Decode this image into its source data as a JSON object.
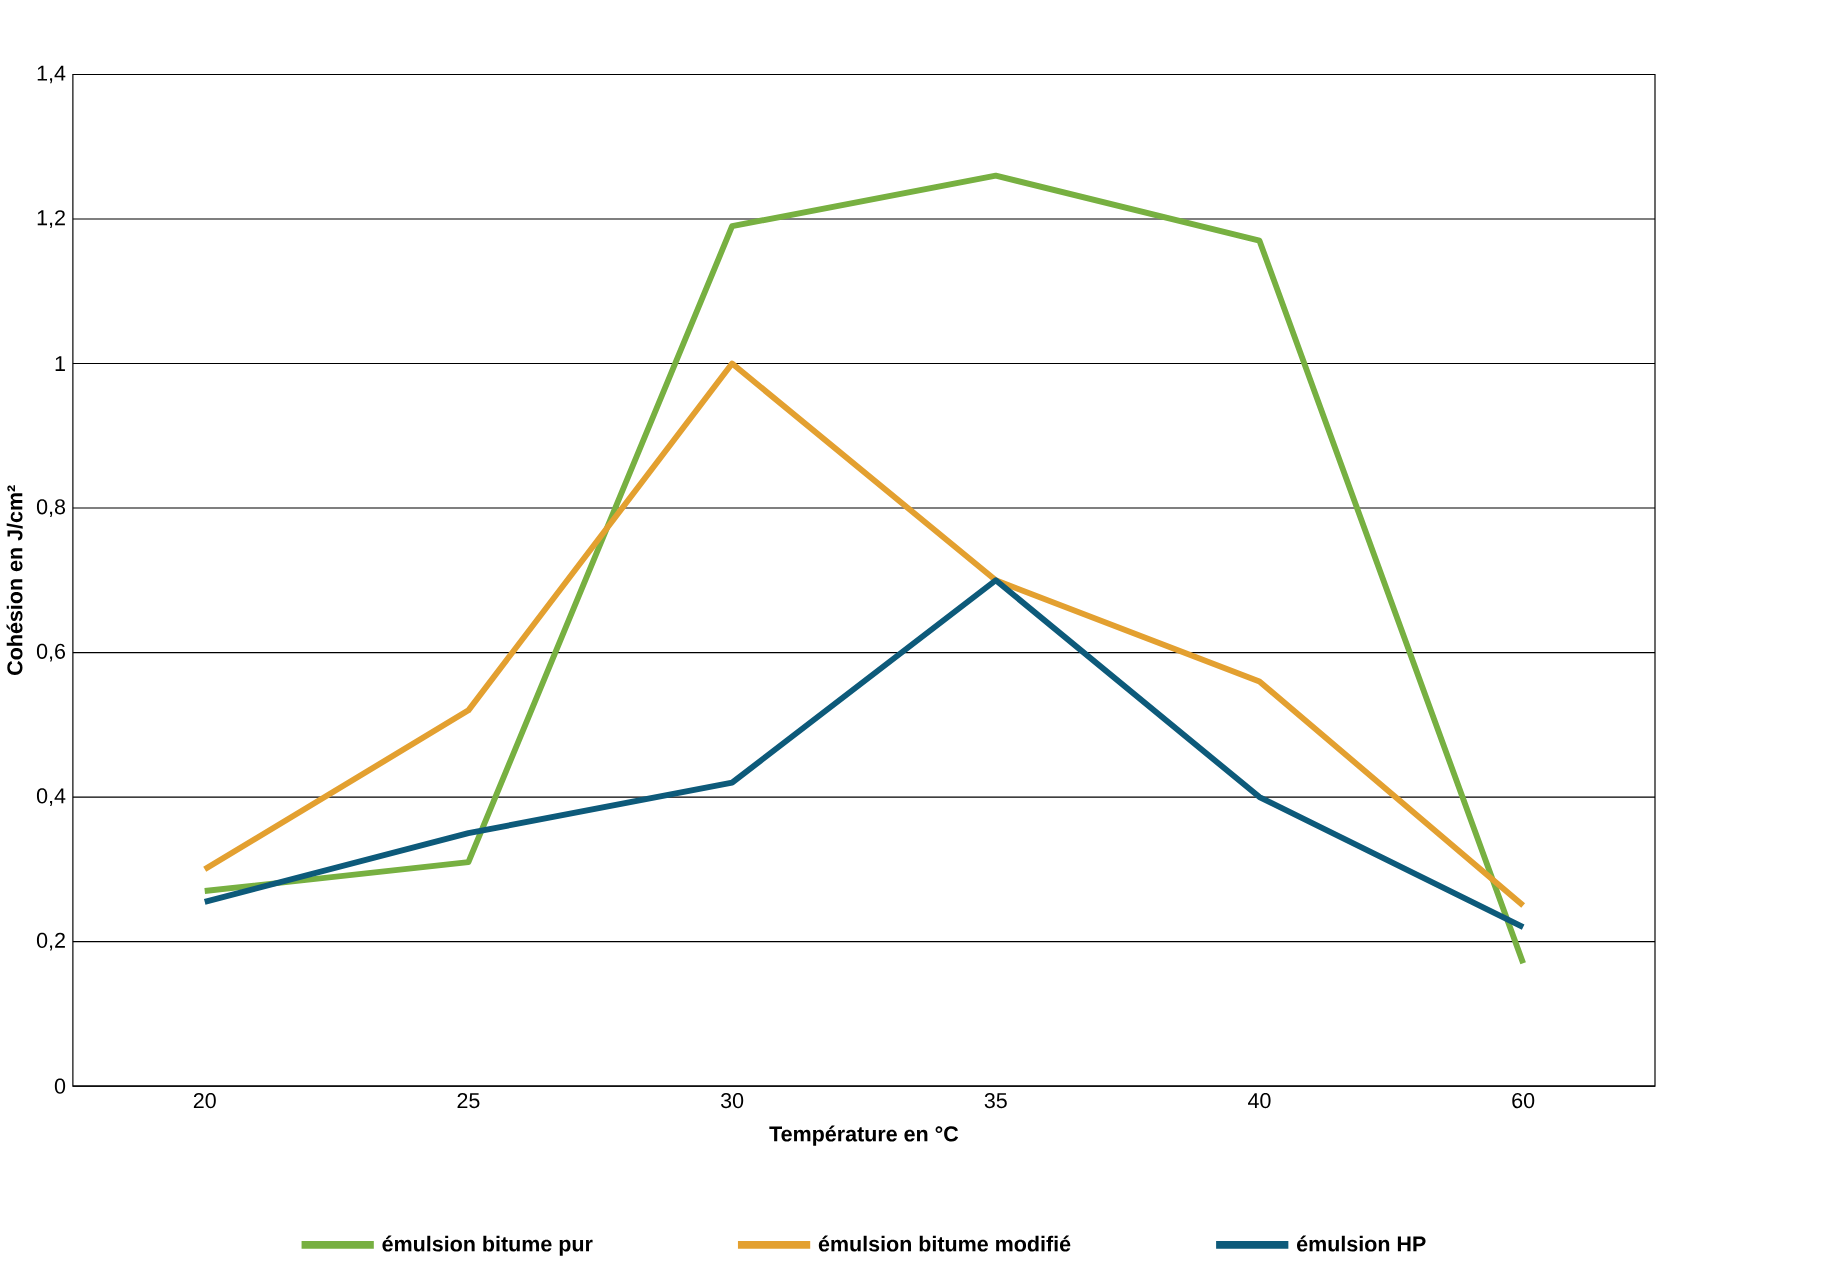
{
  "chart_data": {
    "type": "line",
    "xlabel": "Température en °C",
    "ylabel": "Cohésion en J/cm²",
    "categories": [
      "20",
      "25",
      "30",
      "35",
      "40",
      "60"
    ],
    "series": [
      {
        "name": "émulsion bitume pur",
        "color": "#77b041",
        "values": [
          0.27,
          0.31,
          1.19,
          1.26,
          1.17,
          0.17
        ]
      },
      {
        "name": "émulsion bitume modifié",
        "color": "#e3a030",
        "values": [
          0.3,
          0.52,
          1.0,
          0.7,
          0.56,
          0.25
        ]
      },
      {
        "name": "émulsion HP",
        "color": "#0d5a7a",
        "values": [
          0.255,
          0.35,
          0.42,
          0.7,
          0.4,
          0.22
        ]
      }
    ],
    "ylim": [
      0,
      1.4
    ],
    "yticks": [
      0,
      {
        "value": 0.2,
        "label": "0,2"
      },
      {
        "value": 0.4,
        "label": "0,4"
      },
      {
        "value": 0.6,
        "label": "0,6"
      },
      {
        "value": 0.8,
        "label": "0,8"
      },
      1,
      {
        "value": 1.2,
        "label": "1,2"
      },
      {
        "value": 1.4,
        "label": "1,4"
      }
    ],
    "grid": "y",
    "legend": "bottom",
    "marker": "none",
    "line_style": "solid"
  }
}
